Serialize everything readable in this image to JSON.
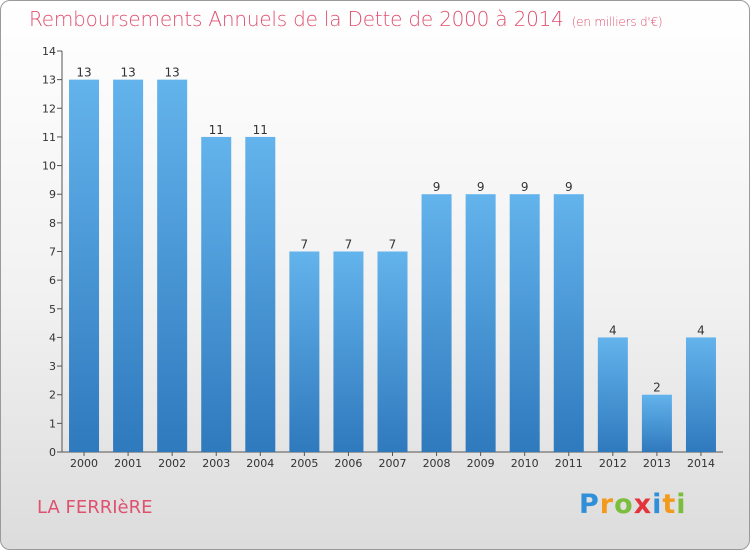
{
  "chart_data": {
    "type": "bar",
    "title": "Remboursements Annuels de la Dette de 2000 à 2014",
    "unit_note": "(en milliers d'€)",
    "categories": [
      "2000",
      "2001",
      "2002",
      "2003",
      "2004",
      "2005",
      "2006",
      "2007",
      "2008",
      "2009",
      "2010",
      "2011",
      "2012",
      "2013",
      "2014"
    ],
    "values": [
      13,
      13,
      13,
      11,
      11,
      7,
      7,
      7,
      9,
      9,
      9,
      9,
      4,
      2,
      4
    ],
    "ylim": [
      0,
      14
    ],
    "yticks": [
      0,
      1,
      2,
      3,
      4,
      5,
      6,
      7,
      8,
      9,
      10,
      11,
      12,
      13,
      14
    ],
    "grid": false,
    "bar_color_top": "#63b3ec",
    "bar_color_bottom": "#2f79bd"
  },
  "commune": "LA FERRIèRE",
  "brand": [
    "P",
    "r",
    "o",
    "x",
    "i",
    "t",
    "i"
  ]
}
